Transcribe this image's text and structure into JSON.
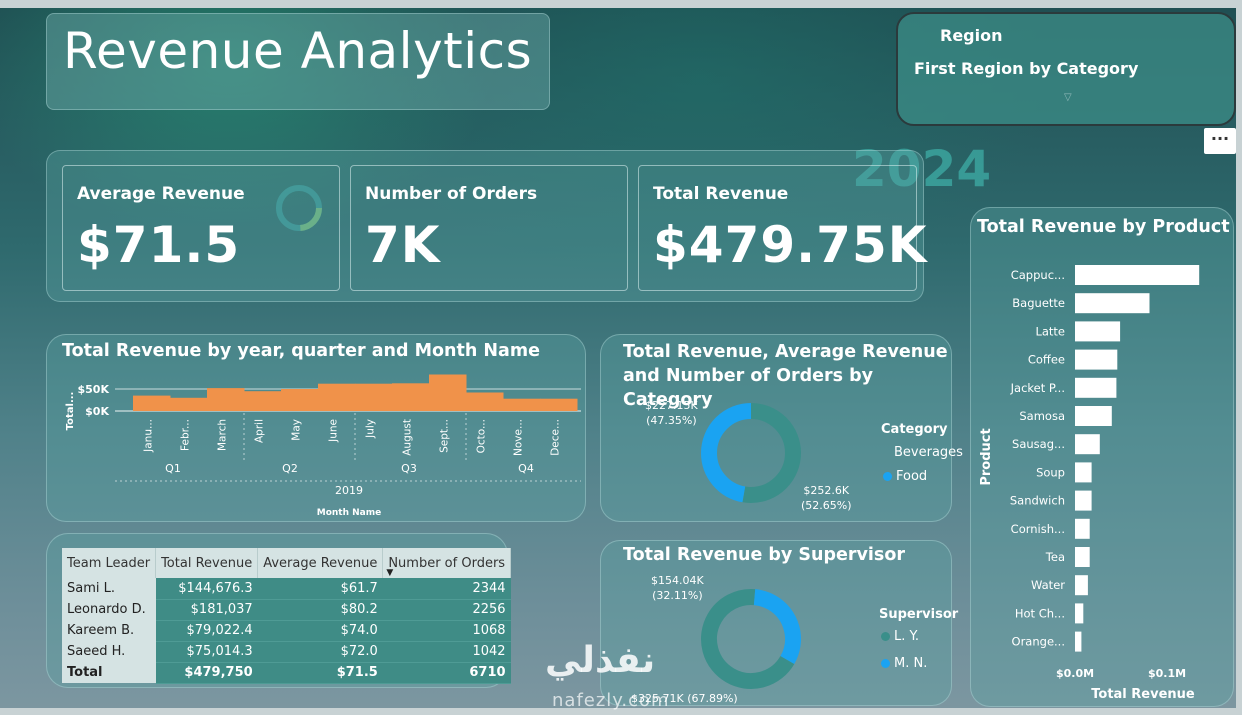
{
  "title": "Revenue Analytics",
  "slicer": {
    "label": "Region",
    "value": "First Region by Category",
    "more_icon": "ellipsis-icon"
  },
  "background_text": "2024",
  "kpis": [
    {
      "label": "Average Revenue",
      "value": "$71.5"
    },
    {
      "label": "Number of Orders",
      "value": "7K"
    },
    {
      "label": "Total Revenue",
      "value": "$479.75K"
    }
  ],
  "colors": {
    "accent_orange": "#f0924a",
    "donut_blue": "#1aa3f2",
    "donut_teal": "#3a8f8a",
    "bar_white": "#ffffff"
  },
  "line_chart": {
    "title": "Total Revenue by year, quarter and Month Name",
    "ylabel": "Total...",
    "xlabel": "Month Name",
    "yticks": [
      "$50K",
      "$0K"
    ],
    "quarters": [
      "Q1",
      "Q2",
      "Q3",
      "Q4"
    ],
    "year": "2019"
  },
  "donut1": {
    "title_line1": "Total Revenue, Average Revenue",
    "title_line2": "and Number of Orders by Category",
    "legend_title": "Category",
    "legend": [
      "Beverages",
      "Food"
    ],
    "label_a_value": "$227.15K",
    "label_a_pct": "(47.35%)",
    "label_b_value": "$252.6K",
    "label_b_pct": "(52.65%)"
  },
  "donut2": {
    "title": "Total Revenue by Supervisor",
    "legend_title": "Supervisor",
    "legend": [
      "L. Y.",
      "M. N."
    ],
    "label_a_value": "$154.04K",
    "label_a_pct": "(32.11%)",
    "label_b": "$325.71K (67.89%)"
  },
  "product_chart": {
    "title": "Total Revenue by Product",
    "ylabel": "Product",
    "xlabel": "Total Revenue",
    "xticks": [
      "$0.0M",
      "$0.1M"
    ]
  },
  "table": {
    "headers": [
      "Team Leader",
      "Total Revenue",
      "Average Revenue",
      "Number of Orders"
    ],
    "rows": [
      [
        "Sami L.",
        "$144,676.3",
        "$61.7",
        "2344"
      ],
      [
        "Leonardo D.",
        "$181,037",
        "$80.2",
        "2256"
      ],
      [
        "Kareem B.",
        "$79,022.4",
        "$74.0",
        "1068"
      ],
      [
        "Saeed H.",
        "$75,014.3",
        "$72.0",
        "1042"
      ]
    ],
    "total": [
      "Total",
      "$479,750",
      "$71.5",
      "6710"
    ]
  },
  "watermark": {
    "arabic": "نفذلي",
    "latin": "nafezly.com"
  },
  "chart_data": [
    {
      "type": "area",
      "title": "Total Revenue by year, quarter and Month Name",
      "xlabel": "Month Name",
      "ylabel": "Total...",
      "categories": [
        "Janu...",
        "Febr...",
        "March",
        "April",
        "May",
        "June",
        "July",
        "August",
        "Sept...",
        "Octo...",
        "Nove...",
        "Dece..."
      ],
      "values": [
        35000,
        30000,
        52000,
        45000,
        50000,
        62000,
        62000,
        63000,
        83000,
        42000,
        28000,
        28000
      ],
      "ylim": [
        0,
        100000
      ]
    },
    {
      "type": "pie",
      "title": "Total Revenue, Average Revenue and Number of Orders by Category",
      "categories": [
        "Beverages",
        "Food"
      ],
      "values": [
        227150,
        252600
      ]
    },
    {
      "type": "pie",
      "title": "Total Revenue by Supervisor",
      "categories": [
        "L. Y.",
        "M. N."
      ],
      "values": [
        325710,
        154040
      ]
    },
    {
      "type": "bar",
      "title": "Total Revenue by Product",
      "xlabel": "Total Revenue",
      "ylabel": "Product",
      "categories": [
        "Cappuc...",
        "Baguette",
        "Latte",
        "Coffee",
        "Jacket P...",
        "Samosa",
        "Sausag...",
        "Soup",
        "Sandwich",
        "Cornish...",
        "Tea",
        "Water",
        "Hot Ch...",
        "Orange..."
      ],
      "values": [
        135000,
        81000,
        49000,
        46000,
        45000,
        40000,
        27000,
        18000,
        18000,
        16000,
        16000,
        14000,
        9000,
        7000
      ],
      "xlim": [
        0,
        165000
      ]
    }
  ]
}
